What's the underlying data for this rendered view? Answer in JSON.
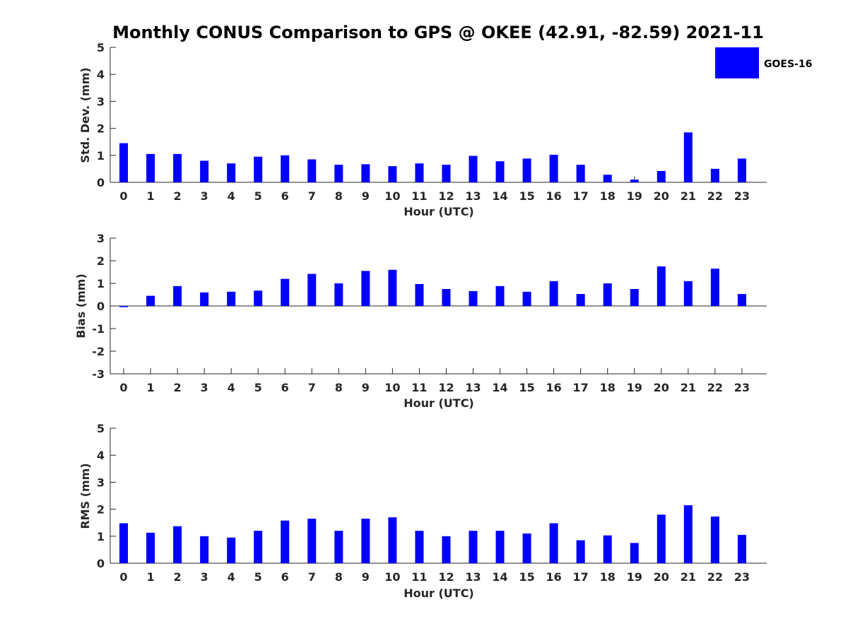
{
  "title": "Monthly CONUS Comparison to GPS @ OKEE (42.91, -82.59) 2021-11",
  "legend": {
    "label": "GOES-16",
    "color": "#0000ff",
    "position": "top-right"
  },
  "chart_data": [
    {
      "type": "bar",
      "ylabel": "Std. Dev. (mm)",
      "xlabel": "Hour (UTC)",
      "ylim": [
        0,
        5
      ],
      "yticks": [
        0,
        1,
        2,
        3,
        4,
        5
      ],
      "categories": [
        "0",
        "1",
        "2",
        "3",
        "4",
        "5",
        "6",
        "7",
        "8",
        "9",
        "10",
        "11",
        "12",
        "13",
        "14",
        "15",
        "16",
        "17",
        "18",
        "19",
        "20",
        "21",
        "22",
        "23"
      ],
      "series": [
        {
          "name": "GOES-16",
          "color": "#0000ff",
          "values": [
            1.45,
            1.05,
            1.05,
            0.8,
            0.7,
            0.95,
            1.0,
            0.85,
            0.65,
            0.67,
            0.6,
            0.7,
            0.65,
            0.98,
            0.78,
            0.88,
            1.02,
            0.65,
            0.28,
            0.1,
            0.42,
            1.85,
            0.5,
            0.88
          ]
        }
      ]
    },
    {
      "type": "bar",
      "ylabel": "Bias (mm)",
      "xlabel": "Hour (UTC)",
      "ylim": [
        -3,
        3
      ],
      "yticks": [
        -3,
        -2,
        -1,
        0,
        1,
        2,
        3
      ],
      "categories": [
        "0",
        "1",
        "2",
        "3",
        "4",
        "5",
        "6",
        "7",
        "8",
        "9",
        "10",
        "11",
        "12",
        "13",
        "14",
        "15",
        "16",
        "17",
        "18",
        "19",
        "20",
        "21",
        "22",
        "23"
      ],
      "series": [
        {
          "name": "GOES-16",
          "color": "#0000ff",
          "values": [
            -0.05,
            0.45,
            0.88,
            0.6,
            0.63,
            0.68,
            1.2,
            1.42,
            1.0,
            1.55,
            1.6,
            0.97,
            0.75,
            0.66,
            0.88,
            0.63,
            1.1,
            0.53,
            1.0,
            0.75,
            1.75,
            1.1,
            1.65,
            0.53
          ]
        }
      ]
    },
    {
      "type": "bar",
      "ylabel": "RMS (mm)",
      "xlabel": "Hour (UTC)",
      "ylim": [
        0,
        5
      ],
      "yticks": [
        0,
        1,
        2,
        3,
        4,
        5
      ],
      "categories": [
        "0",
        "1",
        "2",
        "3",
        "4",
        "5",
        "6",
        "7",
        "8",
        "9",
        "10",
        "11",
        "12",
        "13",
        "14",
        "15",
        "16",
        "17",
        "18",
        "19",
        "20",
        "21",
        "22",
        "23"
      ],
      "series": [
        {
          "name": "GOES-16",
          "color": "#0000ff",
          "values": [
            1.48,
            1.13,
            1.37,
            1.0,
            0.95,
            1.2,
            1.58,
            1.65,
            1.2,
            1.65,
            1.7,
            1.2,
            1.0,
            1.2,
            1.2,
            1.1,
            1.48,
            0.85,
            1.03,
            0.75,
            1.8,
            2.15,
            1.73,
            1.05
          ]
        }
      ]
    }
  ]
}
